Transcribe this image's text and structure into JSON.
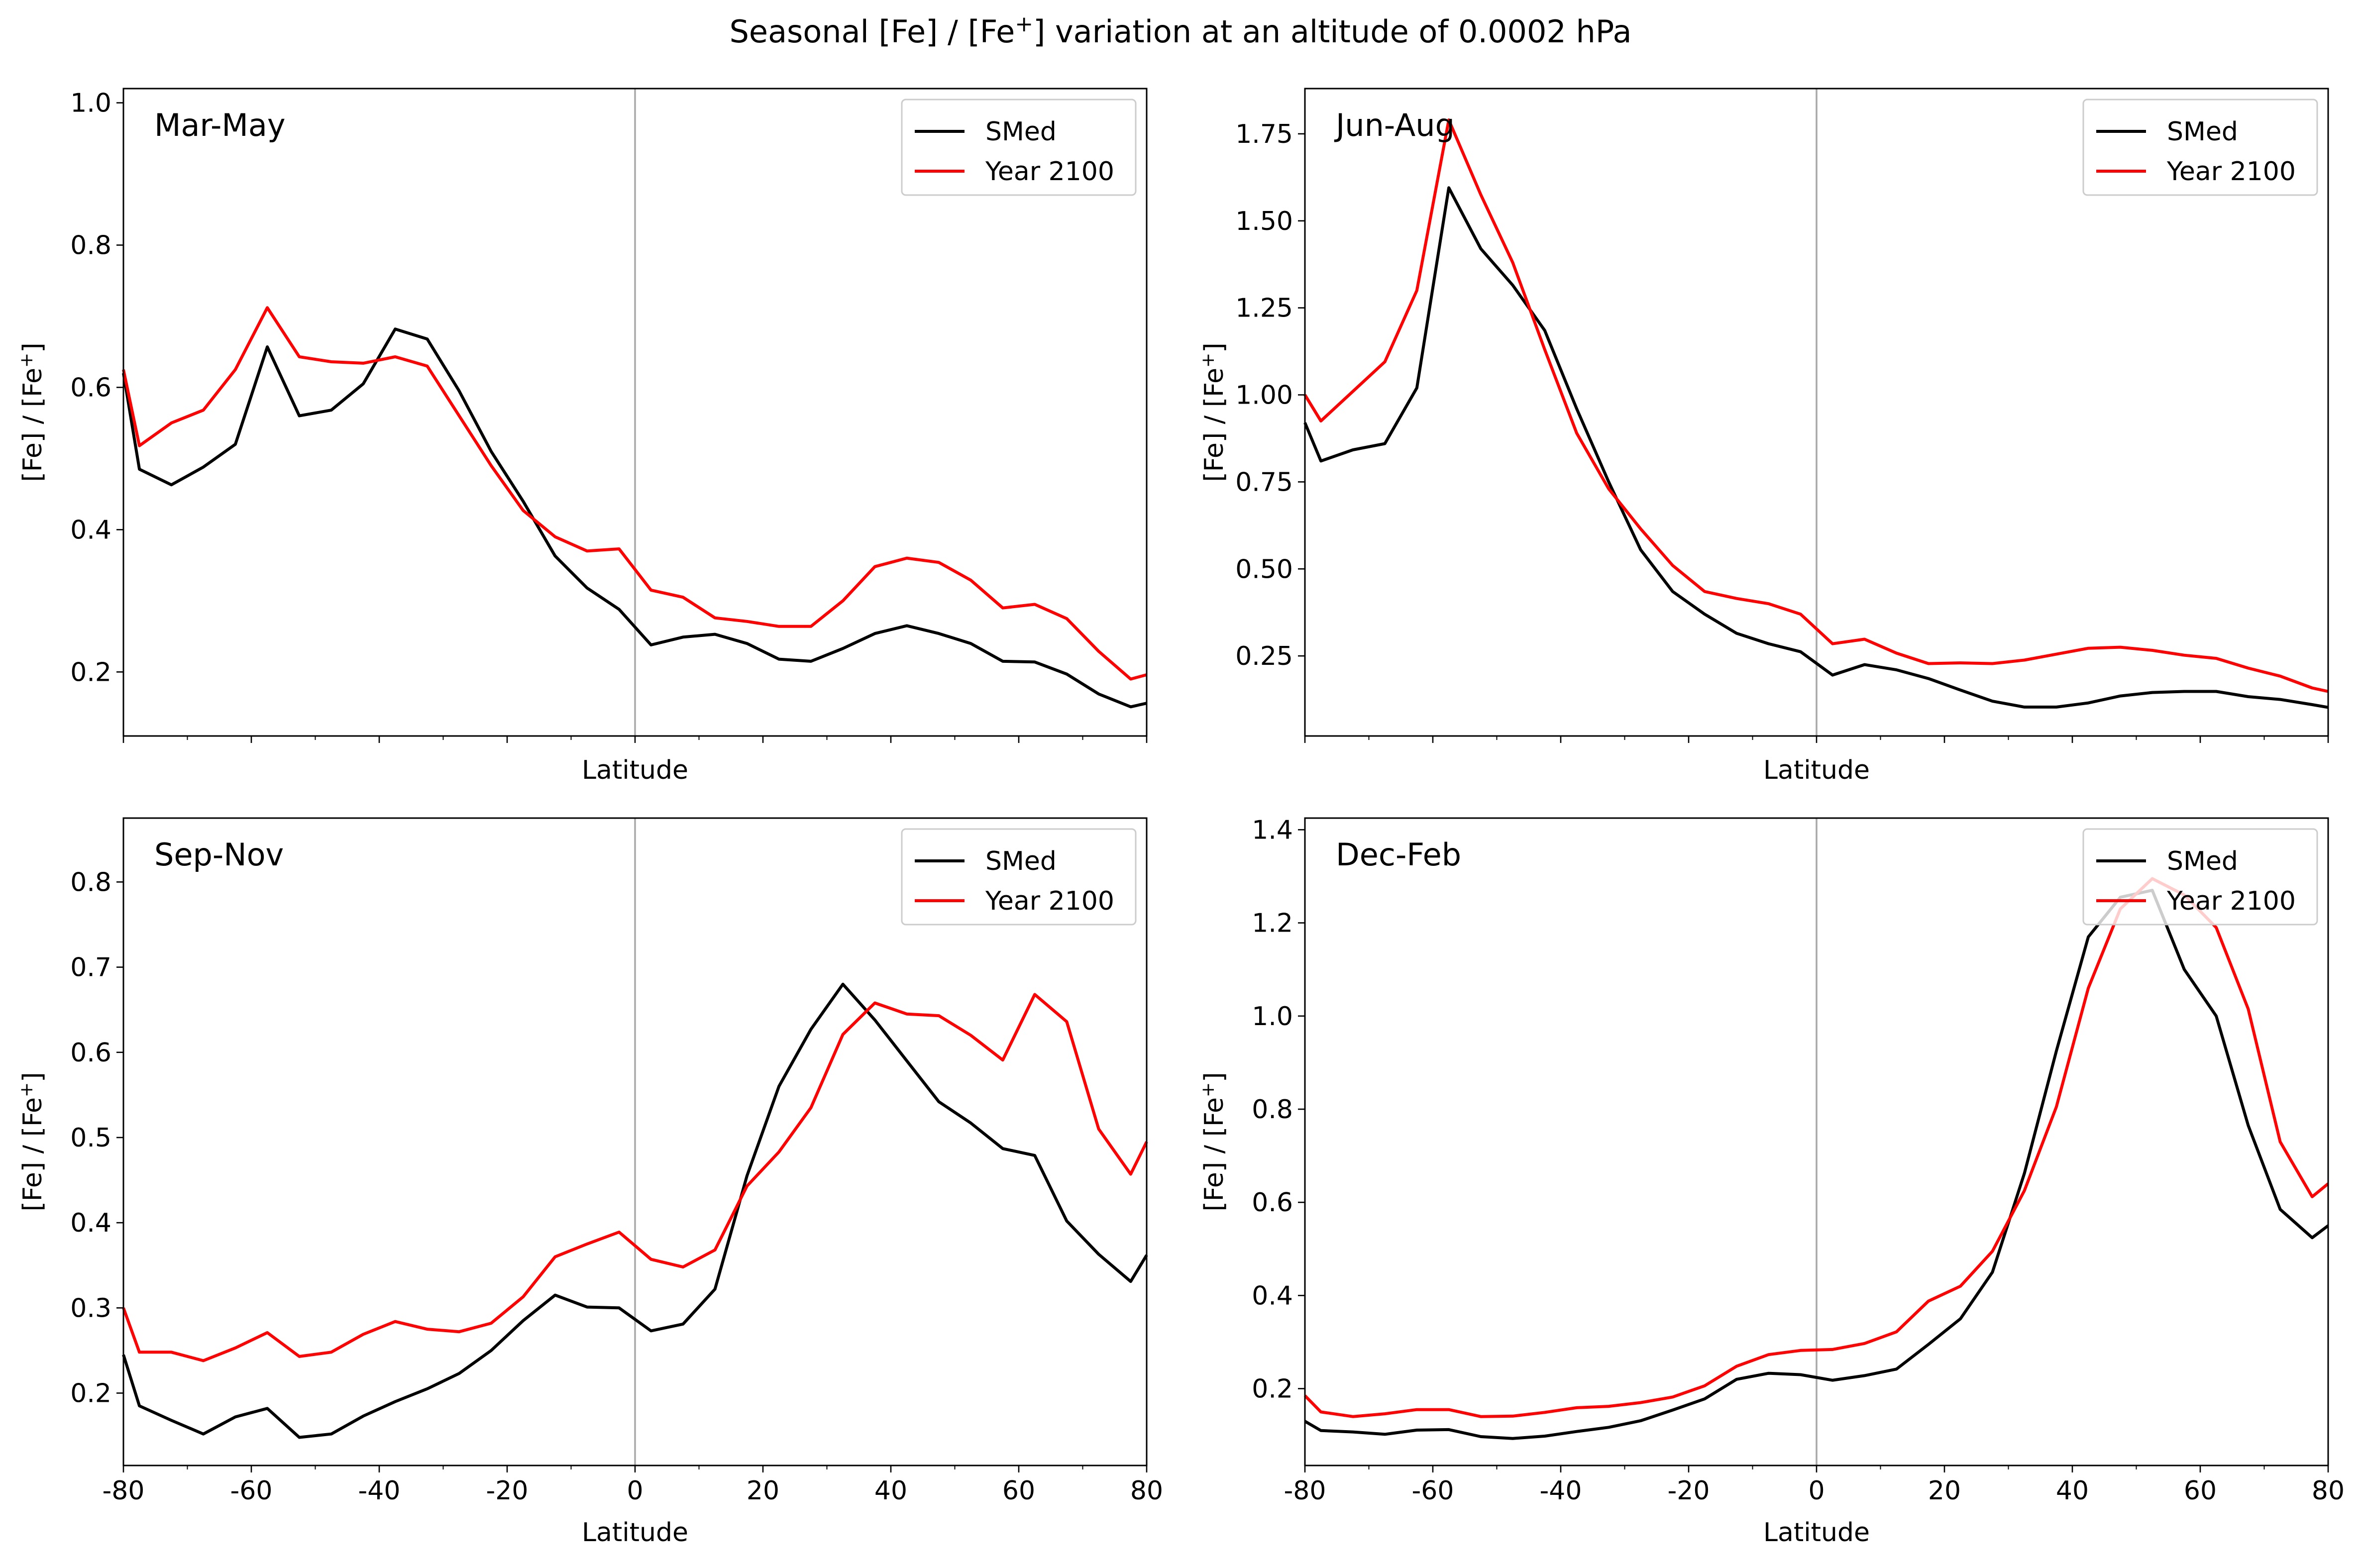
{
  "figure": {
    "title": "Seasonal [Fe] / [Fe",
    "title_sup": "+",
    "title_tail": "] variation at an altitude of 0.0002 hPa"
  },
  "chart_data": [
    {
      "type": "line",
      "panel_label": "Mar-May",
      "xlabel": "Latitude",
      "ylabel": "[Fe] / [Fe",
      "ylabel_sup": "+",
      "ylabel_tail": "]",
      "xlim": [
        -80,
        80
      ],
      "ylim": [
        0.11,
        1.02
      ],
      "yticks": [
        0.2,
        0.4,
        0.6,
        0.8,
        1.0
      ],
      "ytick_labels": [
        "0.2",
        "0.4",
        "0.6",
        "0.8",
        "1.0"
      ],
      "xtick_labels_visible": false,
      "vline_x": 0,
      "legend_position": "upper right",
      "x": [
        -80,
        -77.5,
        -72.5,
        -67.5,
        -62.5,
        -57.5,
        -52.5,
        -47.5,
        -42.5,
        -37.5,
        -32.5,
        -27.5,
        -22.5,
        -17.5,
        -12.5,
        -7.5,
        -2.5,
        2.5,
        7.5,
        12.5,
        17.5,
        22.5,
        27.5,
        32.5,
        37.5,
        42.5,
        47.5,
        52.5,
        57.5,
        62.5,
        67.5,
        72.5,
        77.5,
        80
      ],
      "series": [
        {
          "name": "SMed",
          "color": "#000000",
          "values": [
            0.62,
            0.485,
            0.463,
            0.488,
            0.52,
            0.657,
            0.56,
            0.568,
            0.605,
            0.682,
            0.668,
            0.595,
            0.51,
            0.44,
            0.363,
            0.318,
            0.288,
            0.238,
            0.249,
            0.253,
            0.24,
            0.218,
            0.215,
            0.233,
            0.254,
            0.265,
            0.254,
            0.24,
            0.215,
            0.214,
            0.197,
            0.169,
            0.151,
            0.156
          ]
        },
        {
          "name": "Year 2100",
          "color": "#ff0000",
          "values": [
            0.625,
            0.518,
            0.55,
            0.568,
            0.625,
            0.712,
            0.643,
            0.636,
            0.634,
            0.643,
            0.63,
            0.56,
            0.49,
            0.427,
            0.39,
            0.37,
            0.373,
            0.315,
            0.305,
            0.276,
            0.271,
            0.264,
            0.264,
            0.3,
            0.348,
            0.36,
            0.354,
            0.329,
            0.29,
            0.295,
            0.275,
            0.229,
            0.19,
            0.196
          ]
        }
      ]
    },
    {
      "type": "line",
      "panel_label": "Jun-Aug",
      "xlabel": "Latitude",
      "ylabel": "[Fe] / [Fe",
      "ylabel_sup": "+",
      "ylabel_tail": "]",
      "xlim": [
        -80,
        80
      ],
      "ylim": [
        0.02,
        1.88
      ],
      "yticks": [
        0.25,
        0.5,
        0.75,
        1.0,
        1.25,
        1.5,
        1.75
      ],
      "ytick_labels": [
        "0.25",
        "0.50",
        "0.75",
        "1.00",
        "1.25",
        "1.50",
        "1.75"
      ],
      "xtick_labels_visible": false,
      "vline_x": 0,
      "legend_position": "upper right",
      "x": [
        -80,
        -77.5,
        -72.5,
        -67.5,
        -62.5,
        -57.5,
        -52.5,
        -47.5,
        -42.5,
        -37.5,
        -32.5,
        -27.5,
        -22.5,
        -17.5,
        -12.5,
        -7.5,
        -2.5,
        2.5,
        7.5,
        12.5,
        17.5,
        22.5,
        27.5,
        32.5,
        37.5,
        42.5,
        47.5,
        52.5,
        57.5,
        62.5,
        67.5,
        72.5,
        77.5,
        80
      ],
      "series": [
        {
          "name": "SMed",
          "color": "#000000",
          "values": [
            0.92,
            0.81,
            0.842,
            0.86,
            1.02,
            1.595,
            1.42,
            1.315,
            1.185,
            0.96,
            0.75,
            0.555,
            0.435,
            0.37,
            0.315,
            0.285,
            0.262,
            0.195,
            0.225,
            0.21,
            0.185,
            0.152,
            0.12,
            0.103,
            0.103,
            0.115,
            0.135,
            0.145,
            0.148,
            0.148,
            0.133,
            0.125,
            0.11,
            0.102
          ]
        },
        {
          "name": "Year 2100",
          "color": "#ff0000",
          "values": [
            1.0,
            0.925,
            1.01,
            1.095,
            1.3,
            1.79,
            1.575,
            1.38,
            1.13,
            0.89,
            0.73,
            0.615,
            0.51,
            0.435,
            0.415,
            0.4,
            0.37,
            0.285,
            0.298,
            0.258,
            0.228,
            0.23,
            0.228,
            0.238,
            0.255,
            0.272,
            0.275,
            0.266,
            0.252,
            0.243,
            0.215,
            0.192,
            0.158,
            0.148
          ]
        }
      ]
    },
    {
      "type": "line",
      "panel_label": "Sep-Nov",
      "xlabel": "Latitude",
      "ylabel": "[Fe] / [Fe",
      "ylabel_sup": "+",
      "ylabel_tail": "]",
      "xlim": [
        -80,
        80
      ],
      "ylim": [
        0.115,
        0.875
      ],
      "yticks": [
        0.2,
        0.3,
        0.4,
        0.5,
        0.6,
        0.7,
        0.8
      ],
      "ytick_labels": [
        "0.2",
        "0.3",
        "0.4",
        "0.5",
        "0.6",
        "0.7",
        "0.8"
      ],
      "xticks": [
        -80,
        -60,
        -40,
        -20,
        0,
        20,
        40,
        60,
        80
      ],
      "xtick_labels": [
        "-80",
        "-60",
        "-40",
        "-20",
        "0",
        "20",
        "40",
        "60",
        "80"
      ],
      "xtick_labels_visible": true,
      "vline_x": 0,
      "legend_position": "upper right",
      "x": [
        -80,
        -77.5,
        -72.5,
        -67.5,
        -62.5,
        -57.5,
        -52.5,
        -47.5,
        -42.5,
        -37.5,
        -32.5,
        -27.5,
        -22.5,
        -17.5,
        -12.5,
        -7.5,
        -2.5,
        2.5,
        7.5,
        12.5,
        17.5,
        22.5,
        27.5,
        32.5,
        37.5,
        42.5,
        47.5,
        52.5,
        57.5,
        62.5,
        67.5,
        72.5,
        77.5,
        80
      ],
      "series": [
        {
          "name": "SMed",
          "color": "#000000",
          "values": [
            0.245,
            0.185,
            0.168,
            0.152,
            0.172,
            0.182,
            0.148,
            0.152,
            0.173,
            0.19,
            0.205,
            0.223,
            0.25,
            0.285,
            0.315,
            0.301,
            0.3,
            0.273,
            0.281,
            0.322,
            0.455,
            0.56,
            0.627,
            0.68,
            0.638,
            0.59,
            0.542,
            0.517,
            0.487,
            0.479,
            0.402,
            0.363,
            0.331,
            0.362
          ]
        },
        {
          "name": "Year 2100",
          "color": "#ff0000",
          "values": [
            0.3,
            0.248,
            0.248,
            0.238,
            0.253,
            0.271,
            0.243,
            0.248,
            0.269,
            0.284,
            0.275,
            0.272,
            0.282,
            0.313,
            0.36,
            0.375,
            0.389,
            0.357,
            0.348,
            0.368,
            0.443,
            0.483,
            0.535,
            0.621,
            0.658,
            0.645,
            0.643,
            0.62,
            0.591,
            0.668,
            0.636,
            0.51,
            0.457,
            0.495
          ]
        }
      ]
    },
    {
      "type": "line",
      "panel_label": "Dec-Feb",
      "xlabel": "Latitude",
      "ylabel": "[Fe] / [Fe",
      "ylabel_sup": "+",
      "ylabel_tail": "]",
      "xlim": [
        -80,
        80
      ],
      "ylim": [
        0.035,
        1.425
      ],
      "yticks": [
        0.2,
        0.4,
        0.6,
        0.8,
        1.0,
        1.2,
        1.4
      ],
      "ytick_labels": [
        "0.2",
        "0.4",
        "0.6",
        "0.8",
        "1.0",
        "1.2",
        "1.4"
      ],
      "xticks": [
        -80,
        -60,
        -40,
        -20,
        0,
        20,
        40,
        60,
        80
      ],
      "xtick_labels": [
        "-80",
        "-60",
        "-40",
        "-20",
        "0",
        "20",
        "40",
        "60",
        "80"
      ],
      "xtick_labels_visible": true,
      "vline_x": 0,
      "legend_position": "upper right",
      "x": [
        -80,
        -77.5,
        -72.5,
        -67.5,
        -62.5,
        -57.5,
        -52.5,
        -47.5,
        -42.5,
        -37.5,
        -32.5,
        -27.5,
        -22.5,
        -17.5,
        -12.5,
        -7.5,
        -2.5,
        2.5,
        7.5,
        12.5,
        17.5,
        22.5,
        27.5,
        32.5,
        37.5,
        42.5,
        47.5,
        52.5,
        57.5,
        62.5,
        67.5,
        72.5,
        77.5,
        80
      ],
      "series": [
        {
          "name": "SMed",
          "color": "#000000",
          "values": [
            0.13,
            0.11,
            0.107,
            0.102,
            0.111,
            0.112,
            0.097,
            0.093,
            0.098,
            0.108,
            0.117,
            0.131,
            0.154,
            0.178,
            0.22,
            0.233,
            0.23,
            0.218,
            0.228,
            0.242,
            0.295,
            0.35,
            0.45,
            0.662,
            0.925,
            1.17,
            1.255,
            1.27,
            1.1,
            1.0,
            0.765,
            0.585,
            0.524,
            0.55
          ]
        },
        {
          "name": "Year 2100",
          "color": "#ff0000",
          "values": [
            0.185,
            0.15,
            0.14,
            0.146,
            0.155,
            0.155,
            0.14,
            0.141,
            0.149,
            0.159,
            0.162,
            0.17,
            0.182,
            0.206,
            0.248,
            0.273,
            0.282,
            0.284,
            0.297,
            0.322,
            0.388,
            0.42,
            0.495,
            0.625,
            0.805,
            1.06,
            1.23,
            1.295,
            1.26,
            1.19,
            1.015,
            0.73,
            0.612,
            0.64
          ]
        }
      ]
    }
  ]
}
